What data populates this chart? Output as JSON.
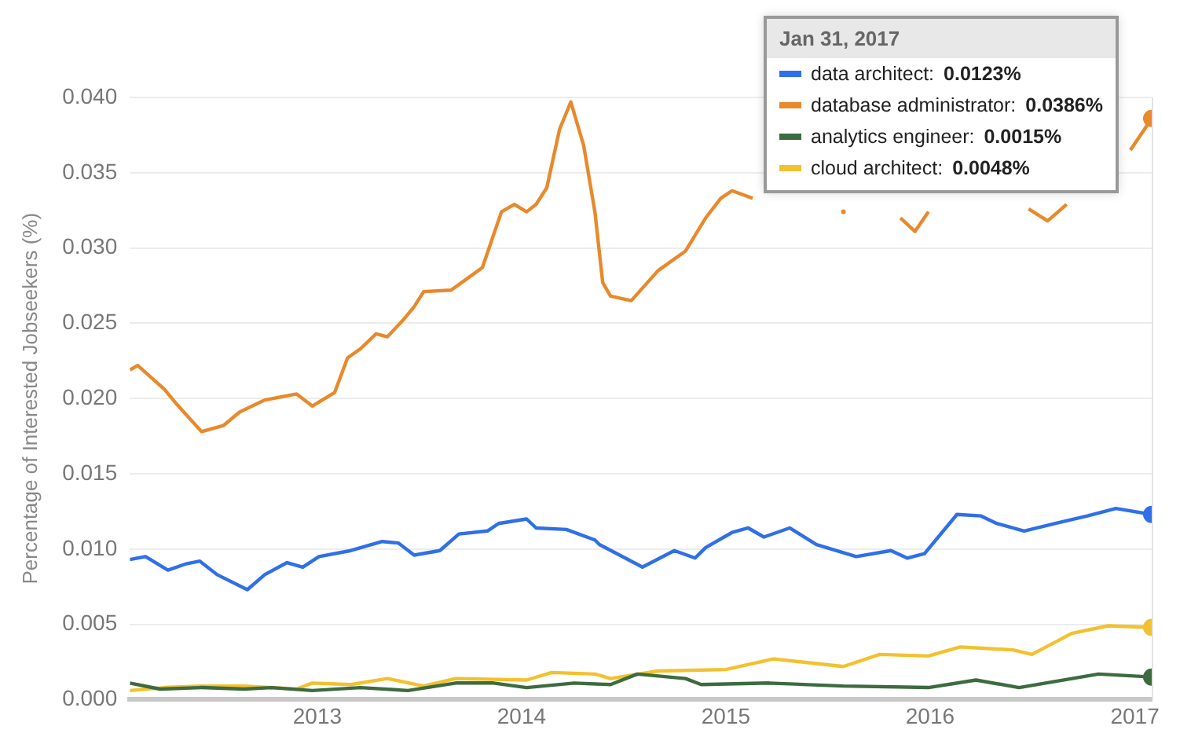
{
  "chart_data": {
    "type": "line",
    "annotations": [
      "0.0123%",
      "0.0386%",
      "0.0015%",
      "0.0048%"
    ],
    "ylabel": "Percentage of Interested Jobseekers (%)",
    "legend_title": "Jan 31, 2017",
    "legend": "top right",
    "grid": "y",
    "xlim": [
      "2012-02-01",
      "2017-01-31"
    ],
    "ylim": [
      0,
      0.04
    ],
    "xticks": [
      {
        "value": "2013-01-01",
        "label": "2013"
      },
      {
        "value": "2014-01-01",
        "label": "2014"
      },
      {
        "value": "2015-01-01",
        "label": "2015"
      },
      {
        "value": "2016-01-01",
        "label": "2016"
      },
      {
        "value": "2017-01-01",
        "label": "2017"
      }
    ],
    "yticks": [
      {
        "value": 0,
        "label": "0.000"
      },
      {
        "value": 0.005,
        "label": "0.005"
      },
      {
        "value": 0.01,
        "label": "0.010"
      },
      {
        "value": 0.015,
        "label": "0.015"
      },
      {
        "value": 0.02,
        "label": "0.020"
      },
      {
        "value": 0.025,
        "label": "0.025"
      },
      {
        "value": 0.03,
        "label": "0.030"
      },
      {
        "value": 0.035,
        "label": "0.035"
      },
      {
        "value": 0.04,
        "label": "0.040"
      }
    ],
    "series": [
      {
        "name": "data architect:",
        "color": "#2f6fe8",
        "x": [
          "2012-02-01",
          "2012-02-29",
          "2012-04-09",
          "2012-05-10",
          "2012-06-05",
          "2012-07-06",
          "2012-08-29",
          "2012-09-29",
          "2012-11-08",
          "2012-12-06",
          "2013-01-04",
          "2013-03-02",
          "2013-04-27",
          "2013-05-26",
          "2013-06-23",
          "2013-08-08",
          "2013-09-11",
          "2013-11-01",
          "2013-11-21",
          "2014-01-10",
          "2014-01-27",
          "2014-03-22",
          "2014-05-12",
          "2014-05-20",
          "2014-08-05",
          "2014-10-01",
          "2014-11-07",
          "2014-11-26",
          "2015-01-12",
          "2015-02-10",
          "2015-03-10",
          "2015-04-25",
          "2015-06-12",
          "2015-08-22",
          "2015-10-23",
          "2015-11-21",
          "2015-12-22",
          "2016-02-18",
          "2016-04-01",
          "2016-04-29",
          "2016-06-17",
          "2016-08-12",
          "2016-10-08",
          "2016-11-28",
          "2017-01-31"
        ],
        "values": [
          0.0093,
          0.0095,
          0.0086,
          0.009,
          0.0092,
          0.0083,
          0.0073,
          0.0083,
          0.0091,
          0.0088,
          0.0095,
          0.0099,
          0.0105,
          0.0104,
          0.0096,
          0.0099,
          0.011,
          0.0112,
          0.0117,
          0.012,
          0.0114,
          0.0113,
          0.0106,
          0.0103,
          0.0088,
          0.0099,
          0.0094,
          0.0101,
          0.0111,
          0.0114,
          0.0108,
          0.0114,
          0.0103,
          0.0095,
          0.0099,
          0.0094,
          0.0097,
          0.0123,
          0.0122,
          0.0117,
          0.0112,
          0.0117,
          0.0122,
          0.0127,
          0.0123
        ]
      },
      {
        "name": "database administrator:",
        "color": "#e8892b",
        "x": [
          "2012-02-01",
          "2012-02-15",
          "2012-04-03",
          "2012-04-23",
          "2012-06-08",
          "2012-07-17",
          "2012-08-15",
          "2012-09-29",
          "2012-11-25",
          "2012-12-23",
          "2013-02-01",
          "2013-02-24",
          "2013-03-19",
          "2013-04-16",
          "2013-05-06",
          "2013-06-03",
          "2013-06-23",
          "2013-07-10",
          "2013-08-28",
          "2013-09-16",
          "2013-10-23",
          "2013-11-26",
          "2013-12-19",
          "2014-01-10",
          "2014-01-27",
          "2014-02-15",
          "2014-03-10",
          "2014-03-30",
          "2014-04-22",
          "2014-05-12",
          "2014-05-26",
          "2014-06-09",
          "2014-07-16",
          "2014-09-02",
          "2014-10-21",
          "2014-11-26",
          "2014-12-23",
          "2015-01-12",
          "2015-02-18",
          "2015-05-01",
          "2015-07-30",
          "2015-09-15",
          "2015-11-09",
          "2015-12-05",
          "2015-12-29",
          "2016-03-15",
          "2016-06-25",
          "2016-07-29",
          "2016-09-01",
          "2016-10-15",
          "2016-12-24",
          "2017-01-31"
        ],
        "values": [
          0.0219,
          0.0222,
          0.0206,
          0.0197,
          0.0178,
          0.0182,
          0.0191,
          0.0199,
          0.0203,
          0.0195,
          0.0204,
          0.0227,
          0.0233,
          0.0243,
          0.0241,
          0.0252,
          0.0261,
          0.0271,
          0.0272,
          0.0277,
          0.0287,
          0.0324,
          0.0329,
          0.0324,
          0.0329,
          0.034,
          0.0379,
          0.0397,
          0.0368,
          0.0324,
          0.0277,
          0.0268,
          0.0265,
          0.0285,
          0.0298,
          0.032,
          0.0333,
          0.0338,
          0.0333,
          null,
          0.0324,
          null,
          0.032,
          0.0311,
          0.0324,
          null,
          0.0326,
          0.0318,
          0.0329,
          null,
          0.0365,
          0.0386
        ]
      },
      {
        "name": "analytics engineer:",
        "color": "#3d6b3f",
        "x": [
          "2012-02-01",
          "2012-03-26",
          "2012-06-08",
          "2012-08-23",
          "2012-10-11",
          "2012-12-23",
          "2013-03-19",
          "2013-06-12",
          "2013-09-05",
          "2013-11-12",
          "2014-01-10",
          "2014-04-05",
          "2014-06-09",
          "2014-07-27",
          "2014-10-21",
          "2014-11-18",
          "2015-03-19",
          "2015-07-30",
          "2015-12-29",
          "2016-03-23",
          "2016-06-08",
          "2016-10-28",
          "2017-01-31"
        ],
        "values": [
          0.0011,
          0.0007,
          0.0008,
          0.0007,
          0.0008,
          0.0006,
          0.0008,
          0.0006,
          0.0011,
          0.0011,
          0.0008,
          0.0011,
          0.001,
          0.0017,
          0.0014,
          0.001,
          0.0011,
          0.0009,
          0.0008,
          0.0013,
          0.0008,
          0.0017,
          0.0015
        ]
      },
      {
        "name": "cloud architect:",
        "color": "#f2c12e",
        "x": [
          "2012-02-01",
          "2012-04-03",
          "2012-06-08",
          "2012-08-23",
          "2012-11-25",
          "2012-12-23",
          "2013-03-02",
          "2013-05-06",
          "2013-07-10",
          "2013-09-05",
          "2014-01-10",
          "2014-02-24",
          "2014-05-12",
          "2014-06-09",
          "2014-09-02",
          "2015-01-01",
          "2015-03-27",
          "2015-07-30",
          "2015-10-03",
          "2015-12-29",
          "2016-02-24",
          "2016-05-28",
          "2016-07-01",
          "2016-09-10",
          "2016-11-14",
          "2017-01-31"
        ],
        "values": [
          0.0006,
          0.0008,
          0.0009,
          0.0009,
          0.0007,
          0.0011,
          0.001,
          0.0014,
          0.0009,
          0.0014,
          0.0013,
          0.0018,
          0.0017,
          0.0014,
          0.0019,
          0.002,
          0.0027,
          0.0022,
          0.003,
          0.0029,
          0.0035,
          0.0033,
          0.003,
          0.0044,
          0.0049,
          0.0048
        ]
      }
    ]
  }
}
